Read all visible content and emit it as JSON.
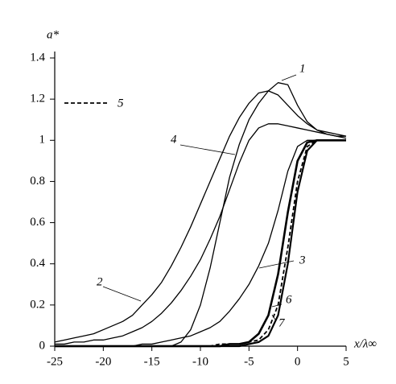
{
  "chart_data": {
    "type": "line",
    "y_label": "a*",
    "x_label": "x/λ∞",
    "x": [
      -25,
      -24,
      -23,
      -22,
      -21,
      -20,
      -19,
      -18,
      -17,
      -16,
      -15,
      -14,
      -13,
      -12,
      -11,
      -10,
      -9,
      -8,
      -7,
      -6,
      -5,
      -4,
      -3,
      -2,
      -1,
      0,
      1,
      2,
      3,
      4,
      5
    ],
    "xlim": [
      -25,
      5
    ],
    "xticks": [
      -25,
      -20,
      -15,
      -10,
      -5,
      0,
      5
    ],
    "ylim": [
      0,
      1.4
    ],
    "yticks": [
      0,
      0.2,
      0.4,
      0.6,
      0.8,
      1,
      1.2,
      1.4
    ],
    "series": [
      {
        "name": "1",
        "color": "#000000",
        "values": [
          0,
          0,
          0,
          0,
          0,
          0,
          0,
          0,
          0,
          0,
          0,
          0,
          0,
          0.02,
          0.08,
          0.2,
          0.38,
          0.6,
          0.82,
          0.98,
          1.1,
          1.18,
          1.24,
          1.28,
          1.27,
          1.17,
          1.09,
          1.05,
          1.03,
          1.02,
          1.01
        ]
      },
      {
        "name": "2",
        "color": "#000000",
        "values": [
          0.02,
          0.03,
          0.04,
          0.05,
          0.06,
          0.08,
          0.1,
          0.12,
          0.15,
          0.2,
          0.25,
          0.31,
          0.39,
          0.48,
          0.58,
          0.69,
          0.8,
          0.91,
          1.02,
          1.11,
          1.18,
          1.23,
          1.24,
          1.22,
          1.17,
          1.12,
          1.08,
          1.05,
          1.04,
          1.03,
          1.02
        ]
      },
      {
        "name": "3",
        "color": "#000000",
        "values": [
          0,
          0,
          0,
          0,
          0,
          0,
          0,
          0,
          0,
          0.01,
          0.01,
          0.02,
          0.03,
          0.04,
          0.05,
          0.07,
          0.09,
          0.12,
          0.17,
          0.23,
          0.3,
          0.39,
          0.5,
          0.66,
          0.85,
          0.97,
          1,
          1,
          1,
          1,
          1
        ]
      },
      {
        "name": "4",
        "color": "#000000",
        "values": [
          0.01,
          0.01,
          0.02,
          0.02,
          0.03,
          0.03,
          0.04,
          0.05,
          0.07,
          0.09,
          0.12,
          0.16,
          0.21,
          0.27,
          0.34,
          0.42,
          0.52,
          0.63,
          0.76,
          0.89,
          1,
          1.06,
          1.08,
          1.08,
          1.07,
          1.06,
          1.05,
          1.04,
          1.03,
          1.02,
          1.02
        ]
      },
      {
        "name": "5",
        "color": "#000000",
        "linestyle": "dashed",
        "values": [
          0,
          0,
          0,
          0,
          0,
          0,
          0,
          0,
          0,
          0,
          0,
          0,
          0,
          0,
          0,
          0,
          0,
          0.01,
          0.01,
          0.01,
          0.02,
          0.03,
          0.08,
          0.2,
          0.48,
          0.8,
          0.97,
          1,
          1,
          1,
          1
        ]
      },
      {
        "name": "6",
        "color": "#000000",
        "values": [
          0,
          0,
          0,
          0,
          0,
          0,
          0,
          0,
          0,
          0,
          0,
          0,
          0,
          0,
          0,
          0,
          0,
          0,
          0.01,
          0.01,
          0.02,
          0.06,
          0.15,
          0.35,
          0.65,
          0.9,
          0.99,
          1,
          1,
          1,
          1
        ]
      },
      {
        "name": "7",
        "color": "#000000",
        "values": [
          0,
          0,
          0,
          0,
          0,
          0,
          0,
          0,
          0,
          0,
          0,
          0,
          0,
          0,
          0,
          0,
          0,
          0,
          0,
          0,
          0.01,
          0.02,
          0.05,
          0.15,
          0.4,
          0.75,
          0.95,
          1,
          1,
          1,
          1
        ]
      }
    ]
  }
}
